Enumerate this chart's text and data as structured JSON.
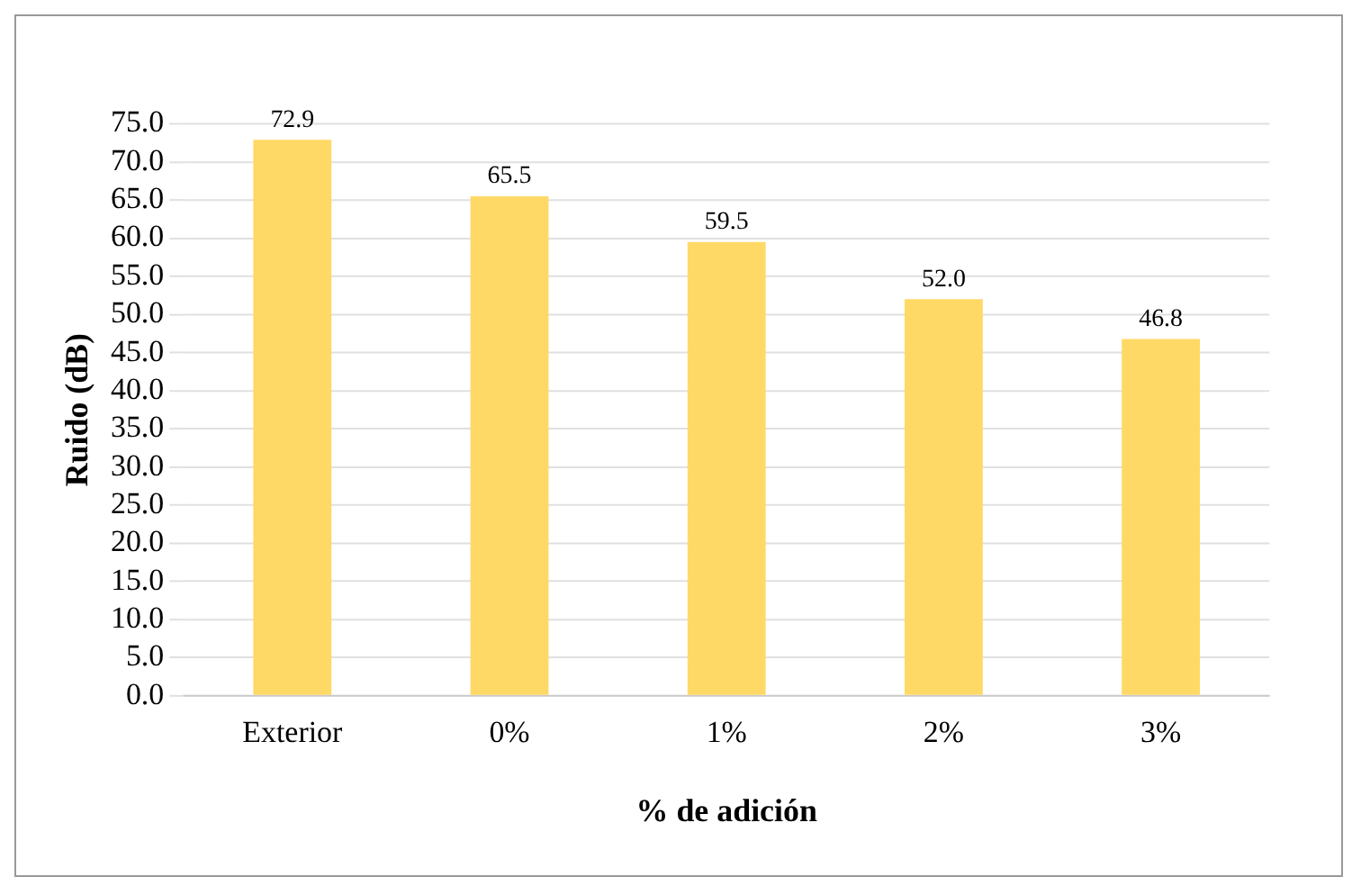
{
  "chart_data": {
    "type": "bar",
    "xlabel": "% de adición",
    "ylabel": "Ruido (dB)",
    "categories": [
      "Exterior",
      "0%",
      "1%",
      "2%",
      "3%"
    ],
    "values": [
      72.9,
      65.5,
      59.5,
      52.0,
      46.8
    ],
    "value_labels": [
      "72.9",
      "65.5",
      "59.5",
      "52.0",
      "46.8"
    ],
    "color": "#ffd966",
    "ylim": [
      0,
      75
    ],
    "yticks": [
      {
        "value": 0,
        "label": "0.0"
      },
      {
        "value": 5,
        "label": "5.0"
      },
      {
        "value": 10,
        "label": "10.0"
      },
      {
        "value": 15,
        "label": "15.0"
      },
      {
        "value": 20,
        "label": "20.0"
      },
      {
        "value": 25,
        "label": "25.0"
      },
      {
        "value": 30,
        "label": "30.0"
      },
      {
        "value": 35,
        "label": "35.0"
      },
      {
        "value": 40,
        "label": "40.0"
      },
      {
        "value": 45,
        "label": "45.0"
      },
      {
        "value": 50,
        "label": "50.0"
      },
      {
        "value": 55,
        "label": "55.0"
      },
      {
        "value": 60,
        "label": "60.0"
      },
      {
        "value": 65,
        "label": "65.0"
      },
      {
        "value": 70,
        "label": "70.0"
      },
      {
        "value": 75,
        "label": "75.0"
      }
    ],
    "grid": "y"
  }
}
